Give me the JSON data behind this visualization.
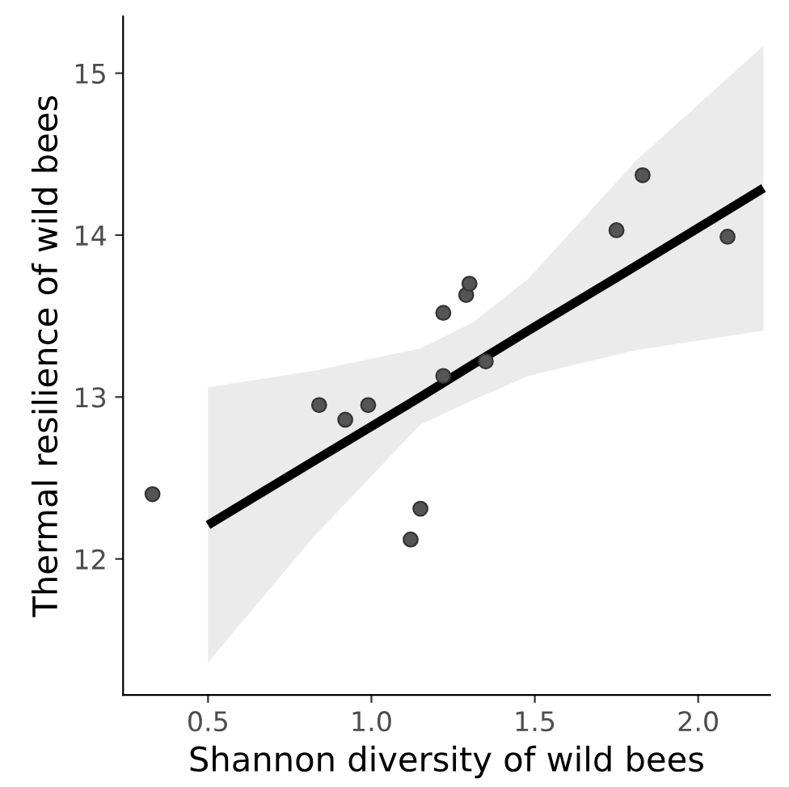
{
  "chart_data": {
    "type": "scatter",
    "xlabel": "Shannon diversity of wild bees",
    "ylabel": "Thermal resilience of wild bees",
    "xlim": [
      0.24,
      2.22
    ],
    "ylim": [
      11.16,
      15.35
    ],
    "xticks": [
      0.5,
      {
        "value": 1.0,
        "label": "1.0"
      },
      1.5,
      {
        "value": 2.0,
        "label": "2.0"
      }
    ],
    "yticks": [
      12,
      13,
      14,
      15
    ],
    "grid": false,
    "marker": "circle",
    "series": [
      {
        "color": "#555555",
        "x": [
          0.33,
          0.84,
          0.92,
          0.99,
          1.12,
          1.15,
          1.22,
          1.22,
          1.29,
          1.3,
          1.35,
          1.75,
          1.83,
          2.09
        ],
        "values": [
          12.4,
          12.95,
          12.86,
          12.95,
          12.12,
          12.31,
          13.13,
          13.52,
          13.63,
          13.7,
          13.22,
          14.03,
          14.37,
          13.99
        ]
      },
      {
        "type": "line",
        "color": "#000000",
        "marker": "none",
        "line_style": "solid",
        "x": [
          0.5,
          0.82,
          1.15,
          1.31,
          1.48,
          1.81,
          2.2
        ],
        "values": [
          12.21,
          12.6,
          13.0,
          13.2,
          13.41,
          13.81,
          14.29
        ],
        "lower": [
          11.36,
          12.13,
          12.83,
          12.98,
          13.13,
          13.29,
          13.41
        ],
        "upper": [
          13.06,
          13.16,
          13.3,
          13.46,
          13.73,
          14.46,
          15.17
        ]
      }
    ]
  }
}
